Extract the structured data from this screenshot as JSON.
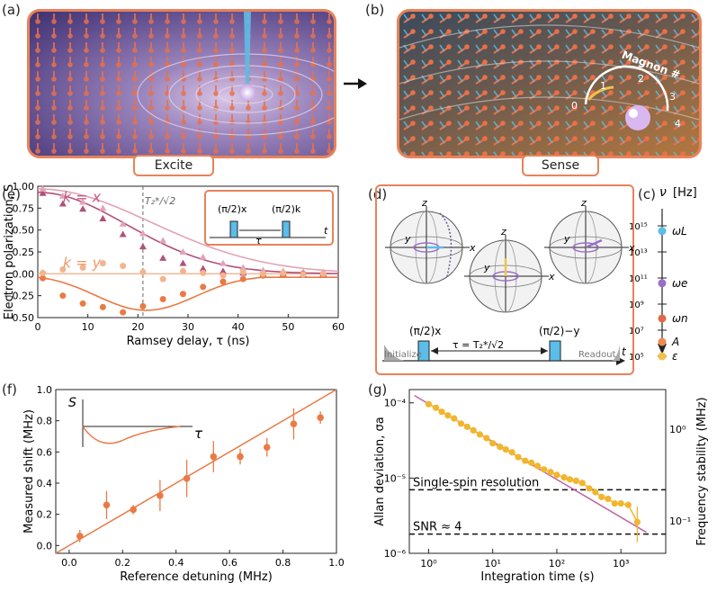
{
  "panels": {
    "a": {
      "label": "(a)",
      "caption": "Excite"
    },
    "b": {
      "label": "(b)",
      "caption": "Sense",
      "magnon_label": "Magnon #",
      "magnon_ticks": [
        "0",
        "1",
        "2",
        "3",
        "4"
      ]
    },
    "c": {
      "label": "(c)",
      "axis_title": "ν",
      "axis_unit": "[Hz]",
      "ticks": [
        "10¹⁵",
        "10¹³",
        "10¹¹",
        "10⁹",
        "10⁷",
        "10⁵"
      ],
      "entries": [
        {
          "name": "ωL",
          "color": "#5bbde8",
          "exp": 14.6
        },
        {
          "name": "ωe",
          "color": "#9b6fc9",
          "exp": 10.6
        },
        {
          "name": "ωn",
          "color": "#e0694a",
          "exp": 7.9
        },
        {
          "name": "A",
          "color": "#ee8a52",
          "exp": 6.1
        },
        {
          "name": "ε",
          "color": "#f2c14e",
          "exp": 5.0
        }
      ]
    },
    "d": {
      "label": "(d)",
      "pulse1": "(π/2)x",
      "pulse2": "(π/2)−y",
      "initialize": "Initialize",
      "readout": "Readout",
      "tau": "τ = T₂*/√2",
      "t": "t",
      "axes": {
        "z": "z",
        "x": "x",
        "y": "y"
      }
    },
    "e": {
      "label": "(e)",
      "kx": "k = x",
      "ky": "k = y",
      "t2": "T₂*/√2",
      "inset_p1": "(π/2)x",
      "inset_p2": "(π/2)k",
      "inset_tau": "τ",
      "inset_t": "t"
    },
    "f": {
      "label": "(f)",
      "inset_s": "S",
      "inset_tau": "τ"
    },
    "g": {
      "label": "(g)",
      "single_spin": "Single-spin resolution",
      "snr": "SNR ≈ 4",
      "right_ylabel": "Frequency stability (MHz)",
      "right_ticks": [
        "10⁰",
        "10⁻¹"
      ]
    }
  },
  "chart_data": [
    {
      "id": "e",
      "type": "scatter",
      "title": "",
      "xlabel": "Ramsey delay, τ (ns)",
      "ylabel": "Electron polarization, S",
      "xlim": [
        0,
        60
      ],
      "ylim": [
        -0.5,
        1.0
      ],
      "xticks": [
        "0",
        "10",
        "20",
        "30",
        "40",
        "50",
        "60"
      ],
      "yticks": [
        "−0.50",
        "−0.25",
        "0.00",
        "0.25",
        "0.50",
        "0.75",
        "1.00"
      ],
      "vline": 21,
      "series": [
        {
          "name": "k = x (dark)",
          "color": "#b0507a",
          "marker": "triangle",
          "x": [
            1,
            5,
            9,
            13,
            17,
            21,
            25,
            29,
            33,
            37,
            41,
            45,
            49,
            53,
            57
          ],
          "y": [
            0.92,
            0.8,
            0.74,
            0.63,
            0.45,
            0.31,
            0.18,
            0.12,
            0.06,
            0.03,
            0.01,
            0.0,
            0.0,
            -0.01,
            0.0
          ]
        },
        {
          "name": "k = x (light)",
          "color": "#e3a3b6",
          "marker": "triangle",
          "x": [
            1,
            5,
            9,
            13,
            17,
            21,
            25,
            29,
            33,
            37,
            41,
            45,
            49,
            53,
            57
          ],
          "y": [
            0.97,
            0.89,
            0.82,
            0.75,
            0.57,
            0.46,
            0.38,
            0.25,
            0.19,
            0.12,
            0.07,
            0.04,
            0.03,
            0.02,
            0.02
          ]
        },
        {
          "name": "k = y (dark)",
          "color": "#ea7a45",
          "marker": "circle",
          "x": [
            1,
            5,
            9,
            13,
            17,
            21,
            25,
            29,
            33,
            37,
            41,
            45,
            49,
            53,
            57
          ],
          "y": [
            -0.05,
            -0.25,
            -0.34,
            -0.38,
            -0.44,
            -0.37,
            -0.29,
            -0.23,
            -0.15,
            -0.09,
            -0.06,
            -0.02,
            -0.01,
            0.0,
            0.0
          ]
        },
        {
          "name": "k = y (light)",
          "color": "#f3b48f",
          "marker": "circle",
          "x": [
            1,
            5,
            9,
            13,
            17,
            21,
            25,
            29,
            33,
            37,
            41,
            45,
            49,
            53,
            57
          ],
          "y": [
            0.01,
            0.05,
            0.07,
            0.12,
            0.09,
            0.02,
            -0.06,
            0.03,
            0.01,
            -0.02,
            0.02,
            0.0,
            0.01,
            -0.01,
            0.0
          ]
        }
      ]
    },
    {
      "id": "f",
      "type": "scatter",
      "xlabel": "Reference detuning (MHz)",
      "ylabel": "Measured shift (MHz)",
      "xlim": [
        -0.05,
        1.0
      ],
      "ylim": [
        -0.05,
        1.0
      ],
      "xticks": [
        "0.0",
        "0.2",
        "0.4",
        "0.6",
        "0.8",
        "1.0"
      ],
      "yticks": [
        "0.0",
        "0.2",
        "0.4",
        "0.6",
        "0.8",
        "1.0"
      ],
      "series": [
        {
          "name": "data",
          "color": "#ea7a45",
          "x": [
            0.04,
            0.14,
            0.24,
            0.34,
            0.44,
            0.54,
            0.64,
            0.74,
            0.84,
            0.94
          ],
          "y": [
            0.06,
            0.26,
            0.23,
            0.32,
            0.43,
            0.57,
            0.57,
            0.63,
            0.78,
            0.82
          ],
          "err": [
            0.04,
            0.09,
            0.03,
            0.1,
            0.12,
            0.1,
            0.05,
            0.06,
            0.1,
            0.04
          ]
        }
      ],
      "fit": {
        "slope": 1.0,
        "intercept": 0.0
      }
    },
    {
      "id": "g",
      "type": "line",
      "xlabel": "Integration time (s)",
      "ylabel": "Allan deviation, σa",
      "xscale": "log",
      "yscale": "log",
      "xlim": [
        0.5,
        5000
      ],
      "ylim": [
        1e-06,
        0.00015
      ],
      "xticks": [
        "10⁰",
        "10¹",
        "10²",
        "10³"
      ],
      "yticks": [
        "10⁻⁶",
        "10⁻⁵",
        "10⁻⁴"
      ],
      "hlines": [
        7e-06,
        1.8e-06
      ],
      "series": [
        {
          "name": "Allan deviation",
          "color": "#f2b52e",
          "x": [
            1,
            1.3,
            1.6,
            2,
            2.5,
            3.2,
            4,
            5,
            6.3,
            8,
            10,
            13,
            16,
            20,
            25,
            32,
            40,
            50,
            63,
            80,
            100,
            130,
            160,
            200,
            250,
            320,
            400,
            500,
            630,
            800,
            1000,
            1300,
            1800
          ],
          "y": [
            9.6e-05,
            8.6e-05,
            7.6e-05,
            6.8e-05,
            6.2e-05,
            5.3e-05,
            4.8e-05,
            4.3e-05,
            3.8e-05,
            3.4e-05,
            2.9e-05,
            2.6e-05,
            2.4e-05,
            2.2e-05,
            1.9e-05,
            1.7e-05,
            1.6e-05,
            1.45e-05,
            1.3e-05,
            1.2e-05,
            1.1e-05,
            1.02e-05,
            9.6e-06,
            9.2e-06,
            8.6e-06,
            7.3e-06,
            6.5e-06,
            5.6e-06,
            5.3e-06,
            4.6e-06,
            4.6e-06,
            4.4e-06,
            2.6e-06
          ]
        },
        {
          "name": "shot-noise fit",
          "color": "#c064a3",
          "x": [
            0.6,
            2500
          ],
          "y": [
            0.000125,
            1.9e-06
          ]
        }
      ]
    }
  ]
}
